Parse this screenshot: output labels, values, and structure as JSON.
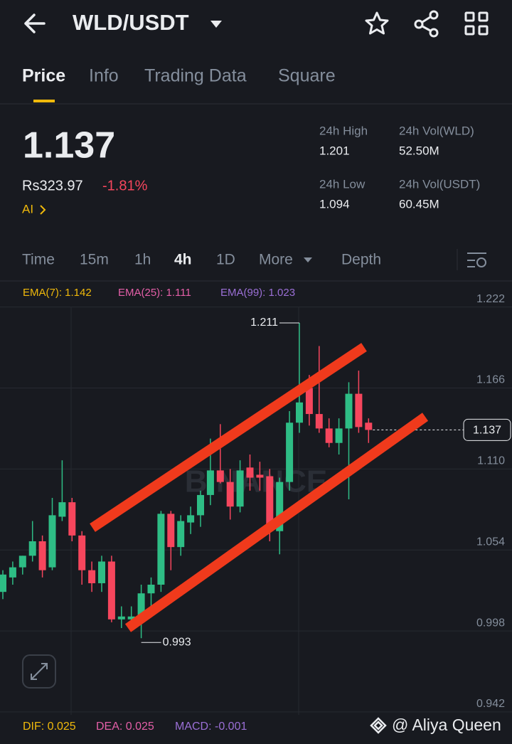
{
  "header": {
    "pair": "WLD/USDT"
  },
  "tabs": [
    "Price",
    "Info",
    "Trading Data",
    "Square"
  ],
  "price": {
    "last": "1.137",
    "local": "Rs323.97",
    "change": "-1.81%",
    "ai": "AI"
  },
  "stats": [
    {
      "label": "24h High",
      "value": "1.201"
    },
    {
      "label": "24h Vol(WLD)",
      "value": "52.50M"
    },
    {
      "label": "24h Low",
      "value": "1.094"
    },
    {
      "label": "24h Vol(USDT)",
      "value": "60.45M"
    }
  ],
  "intervals": [
    "Time",
    "15m",
    "1h",
    "4h",
    "1D",
    "More",
    "Depth"
  ],
  "ema": [
    "EMA(7): 1.142",
    "EMA(25): 1.111",
    "EMA(99): 1.023"
  ],
  "macd": [
    "DIF: 0.025",
    "DEA: 0.025",
    "MACD: -0.001"
  ],
  "watermark": "BINANCE",
  "credit": "@ Aliya Queen",
  "chart_data": {
    "type": "candlestick",
    "ylim": [
      0.94,
      1.24
    ],
    "yticks": [
      1.222,
      1.166,
      {
        "value": 1.11,
        "label": "1.110"
      },
      1.054,
      0.998,
      0.942
    ],
    "up_color": "#2ebd85",
    "down_color": "#f6465d",
    "open": [
      1.025,
      1.035,
      1.042,
      1.05,
      1.06,
      1.042,
      1.077,
      1.087,
      1.064,
      1.04,
      1.031,
      1.046,
      1.006,
      1.006,
      1.008,
      1.024,
      1.03,
      1.079,
      1.056,
      1.073,
      1.078,
      1.092,
      1.109,
      1.101,
      1.084,
      1.111,
      1.106,
      1.105,
      1.067,
      1.101,
      1.142,
      1.166,
      1.148,
      1.138,
      1.128,
      1.138,
      1.162,
      1.142
    ],
    "high": [
      1.04,
      1.046,
      1.05,
      1.074,
      1.064,
      1.09,
      1.116,
      1.09,
      1.067,
      1.046,
      1.05,
      1.05,
      1.015,
      1.015,
      1.03,
      1.035,
      1.081,
      1.081,
      1.078,
      1.084,
      1.095,
      1.131,
      1.141,
      1.11,
      1.116,
      1.12,
      1.115,
      1.11,
      1.104,
      1.15,
      1.211,
      1.175,
      1.195,
      1.145,
      1.145,
      1.17,
      1.178,
      1.145
    ],
    "low": [
      1.02,
      1.03,
      1.037,
      1.046,
      1.035,
      1.04,
      1.074,
      1.06,
      1.03,
      1.025,
      1.025,
      1.004,
      1.0,
      1.0,
      0.993,
      1.015,
      1.025,
      1.04,
      1.05,
      1.065,
      1.07,
      1.085,
      1.1,
      1.075,
      1.08,
      1.095,
      1.095,
      1.06,
      1.051,
      1.095,
      1.135,
      1.14,
      1.135,
      1.125,
      1.12,
      1.089,
      1.135,
      1.128
    ],
    "close": [
      1.037,
      1.042,
      1.05,
      1.06,
      1.04,
      1.078,
      1.087,
      1.064,
      1.04,
      1.031,
      1.046,
      1.006,
      1.008,
      1.008,
      1.024,
      1.03,
      1.079,
      1.056,
      1.074,
      1.078,
      1.092,
      1.109,
      1.101,
      1.084,
      1.109,
      1.104,
      1.104,
      1.067,
      1.101,
      1.142,
      1.156,
      1.148,
      1.138,
      1.128,
      1.138,
      1.162,
      1.139,
      1.137
    ],
    "high_label": "1.211",
    "low_label": "0.993",
    "last_price": 1.137
  }
}
